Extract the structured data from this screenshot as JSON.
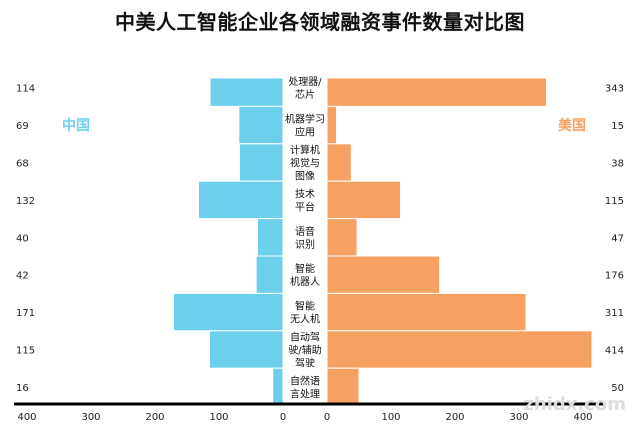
{
  "chart_data": {
    "type": "bar",
    "orientation": "horizontal-butterfly",
    "title": "中美人工智能企业各领域融资事件数量对比图",
    "categories": [
      "处理器/芯片",
      "机器学习应用",
      "计算机视觉与图像",
      "技术平台",
      "语音识别",
      "智能机器人",
      "智能无人机",
      "自动驾驶/辅助驾驶",
      "自然语言处理"
    ],
    "category_lines": [
      [
        "处理器/",
        "芯片"
      ],
      [
        "机器学习",
        "应用"
      ],
      [
        "计算机",
        "视觉与",
        "图像"
      ],
      [
        "技术",
        "平台"
      ],
      [
        "语音",
        "识别"
      ],
      [
        "智能",
        "机器人"
      ],
      [
        "智能",
        "无人机"
      ],
      [
        "自动驾",
        "驶/辅助",
        "驾驶"
      ],
      [
        "自然语",
        "言处理"
      ]
    ],
    "series": [
      {
        "name": "中国",
        "side": "left",
        "color": "#6dcfeb",
        "values": [
          114,
          69,
          68,
          132,
          40,
          42,
          171,
          115,
          16
        ]
      },
      {
        "name": "美国",
        "side": "right",
        "color": "#f6a062",
        "values": [
          343,
          15,
          38,
          115,
          47,
          176,
          311,
          414,
          50
        ]
      }
    ],
    "xlim": [
      0,
      400
    ],
    "x_ticks_left": [
      "400",
      "300",
      "200",
      "100",
      "0"
    ],
    "x_ticks_right": [
      "0",
      "100",
      "200",
      "300",
      "400"
    ],
    "grid": false,
    "legend": "inline labels left and right"
  },
  "watermark": "智东西 zhidx.com"
}
